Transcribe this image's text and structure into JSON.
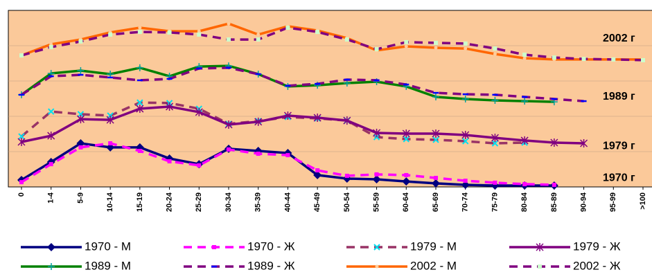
{
  "chart_data": {
    "type": "line",
    "categories": [
      "0",
      "1-4",
      "5-9",
      "10-14",
      "15-19",
      "20-24",
      "25-29",
      "30-34",
      "35-39",
      "40-44",
      "45-49",
      "50-54",
      "55-59",
      "60-64",
      "65-69",
      "70-74",
      "75-79",
      "80-84",
      "85-89",
      "90-94",
      "95-99",
      ">100"
    ],
    "ylim": [
      0,
      100
    ],
    "background": "#fbc99a",
    "annotations": [
      {
        "text": "2002 г",
        "value": 84
      },
      {
        "text": "1989 г",
        "value": 51
      },
      {
        "text": "1979 г",
        "value": 23
      },
      {
        "text": "1970 г",
        "value": 5
      }
    ],
    "series": [
      {
        "name": "1970 - М",
        "color": "#000080",
        "dash": false,
        "marker": "diamond",
        "marker_color": "#000080",
        "values": [
          3.9,
          14.1,
          24.7,
          22.4,
          22.4,
          16.1,
          12.9,
          21.6,
          20.4,
          19.2,
          6.7,
          4.7,
          4.3,
          3.1,
          2.0,
          1.2,
          0.8,
          0.8,
          0.8,
          null,
          null,
          null
        ]
      },
      {
        "name": "1970 - Ж",
        "color": "#ff00ff",
        "dash": true,
        "marker": "square",
        "marker_color": "#ff00ff",
        "values": [
          2.7,
          12.9,
          22.4,
          24.7,
          20.4,
          14.5,
          12.2,
          21.2,
          18.8,
          18.0,
          9.4,
          6.3,
          7.1,
          6.7,
          5.1,
          3.5,
          2.4,
          1.6,
          1.2,
          null,
          null,
          null
        ]
      },
      {
        "name": "1979 - М",
        "color": "#993366",
        "dash": true,
        "marker": "x",
        "marker_color": "#00e0f0",
        "values": [
          28.6,
          42.7,
          41.2,
          40.4,
          47.8,
          47.5,
          44.3,
          35.7,
          37.3,
          39.6,
          38.8,
          37.6,
          28.2,
          27.1,
          26.7,
          25.9,
          24.7,
          25.1,
          null,
          null,
          null,
          null
        ]
      },
      {
        "name": "1979 - Ж",
        "color": "#800080",
        "dash": false,
        "marker": "star",
        "marker_color": "#800080",
        "values": [
          25.5,
          29.0,
          38.4,
          38.0,
          44.3,
          45.5,
          42.4,
          35.3,
          36.9,
          40.4,
          39.2,
          37.6,
          30.6,
          30.2,
          30.2,
          29.4,
          27.8,
          26.3,
          25.1,
          24.7,
          null,
          null
        ]
      },
      {
        "name": "1989 - М",
        "color": "#008000",
        "dash": false,
        "marker": "plus",
        "marker_color": "#00a0a0",
        "values": [
          52.2,
          64.3,
          65.9,
          63.9,
          67.5,
          62.7,
          68.2,
          68.6,
          63.9,
          56.9,
          57.6,
          58.8,
          59.6,
          56.9,
          51.0,
          49.8,
          49.0,
          48.6,
          48.2,
          null,
          null,
          null
        ]
      },
      {
        "name": "1989 - Ж",
        "color": "#800080",
        "dash": true,
        "marker": "dash",
        "marker_color": "#0000ff",
        "values": [
          52.2,
          62.7,
          63.5,
          62.0,
          60.4,
          61.2,
          67.1,
          67.5,
          63.9,
          57.3,
          58.4,
          60.8,
          60.4,
          58.0,
          53.3,
          52.5,
          52.2,
          51.0,
          49.8,
          48.6,
          null,
          null
        ]
      },
      {
        "name": "2002 - М",
        "color": "#ff6600",
        "dash": false,
        "marker": "dot",
        "marker_color": "#ffcc99",
        "values": [
          74.5,
          80.8,
          83.5,
          87.5,
          90.2,
          88.2,
          88.2,
          92.5,
          86.3,
          91.0,
          88.6,
          84.3,
          77.3,
          79.6,
          78.8,
          78.4,
          75.3,
          72.9,
          72.2,
          72.2,
          72.2,
          72.2
        ]
      },
      {
        "name": "2002 - Ж",
        "color": "#800080",
        "dash": true,
        "marker": "square",
        "marker_color": "#ccffcc",
        "values": [
          74.5,
          79.2,
          82.4,
          86.3,
          87.8,
          87.5,
          86.3,
          83.5,
          83.5,
          90.2,
          87.8,
          83.5,
          78.0,
          82.0,
          81.6,
          81.2,
          78.4,
          74.9,
          73.3,
          72.5,
          72.2,
          71.8
        ]
      }
    ]
  }
}
